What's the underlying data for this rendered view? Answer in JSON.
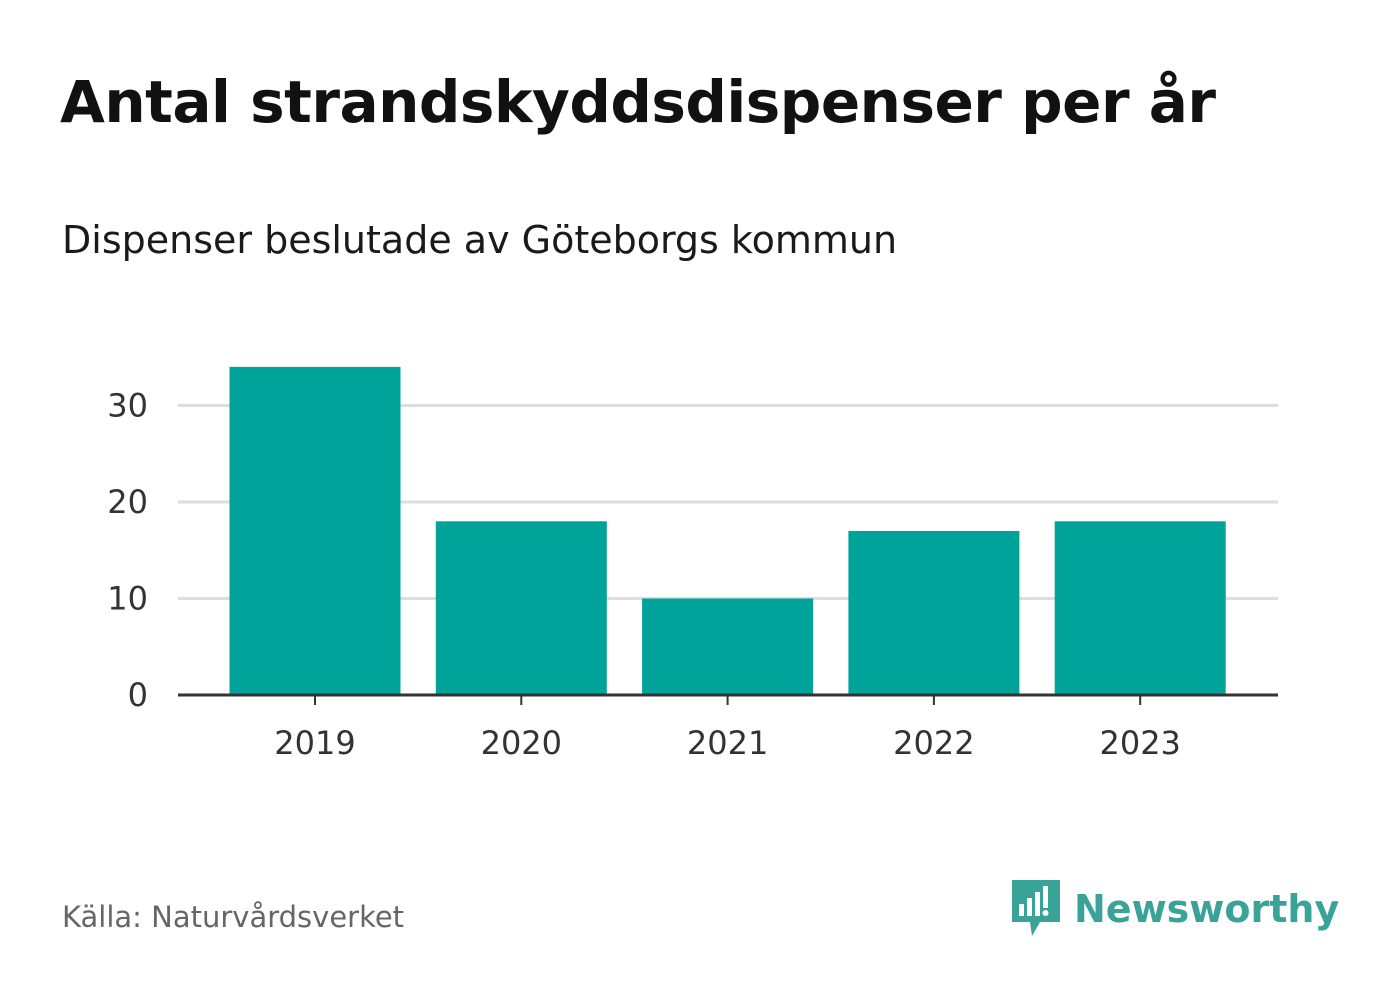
{
  "title": "Antal strandskyddsdispenser per år",
  "subtitle": "Dispenser beslutade av Göteborgs kommun",
  "source": "Källa: Naturvårdsverket",
  "brand": {
    "name": "Newsworthy",
    "icon": "newsworthy-logo-icon",
    "color": "#3aa398"
  },
  "colors": {
    "bar": "#00a39a",
    "grid": "#dddddd",
    "axis": "#333333"
  },
  "chart_data": {
    "type": "bar",
    "categories": [
      "2019",
      "2020",
      "2021",
      "2022",
      "2023"
    ],
    "values": [
      34,
      18,
      10,
      17,
      18
    ],
    "title": "Antal strandskyddsdispenser per år",
    "xlabel": "",
    "ylabel": "",
    "ylim": [
      0,
      35
    ],
    "yticks": [
      0,
      10,
      20,
      30
    ],
    "grid": true,
    "legend": "none"
  }
}
